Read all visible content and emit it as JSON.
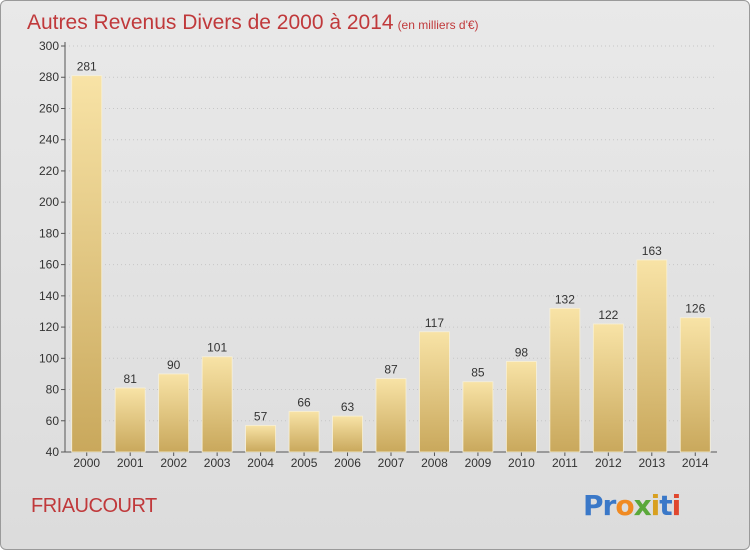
{
  "title": "Autres Revenus Divers de 2000 à 2014",
  "subtitle": "(en milliers d'€)",
  "location": "FRIAUCOURT",
  "brand": {
    "text": "Proxiti",
    "letters": [
      {
        "char": "P",
        "color": "#3a78c8"
      },
      {
        "char": "r",
        "color": "#3a78c8"
      },
      {
        "char": "o",
        "color": "#f08a22"
      },
      {
        "char": "x",
        "color": "#5aa83a"
      },
      {
        "char": "i",
        "color": "#d8a020"
      },
      {
        "char": "t",
        "color": "#3a78c8"
      },
      {
        "char": "i",
        "color": "#e0472e"
      }
    ]
  },
  "colors": {
    "accent": "#c0393b",
    "bar_top": "#f8e3a6",
    "bar_bottom": "#c9a85c"
  },
  "chart_data": {
    "type": "bar",
    "title": "Autres Revenus Divers de 2000 à 2014",
    "subtitle": "(en milliers d'€)",
    "categories": [
      "2000",
      "2001",
      "2002",
      "2003",
      "2004",
      "2005",
      "2006",
      "2007",
      "2008",
      "2009",
      "2010",
      "2011",
      "2012",
      "2013",
      "2014"
    ],
    "values": [
      281,
      81,
      90,
      101,
      57,
      66,
      63,
      87,
      117,
      85,
      98,
      132,
      122,
      163,
      126
    ],
    "ylim": [
      40,
      300
    ],
    "yticks": [
      40,
      60,
      80,
      100,
      120,
      140,
      160,
      180,
      200,
      220,
      240,
      260,
      280,
      300
    ],
    "grid": true,
    "data_labels": true
  }
}
